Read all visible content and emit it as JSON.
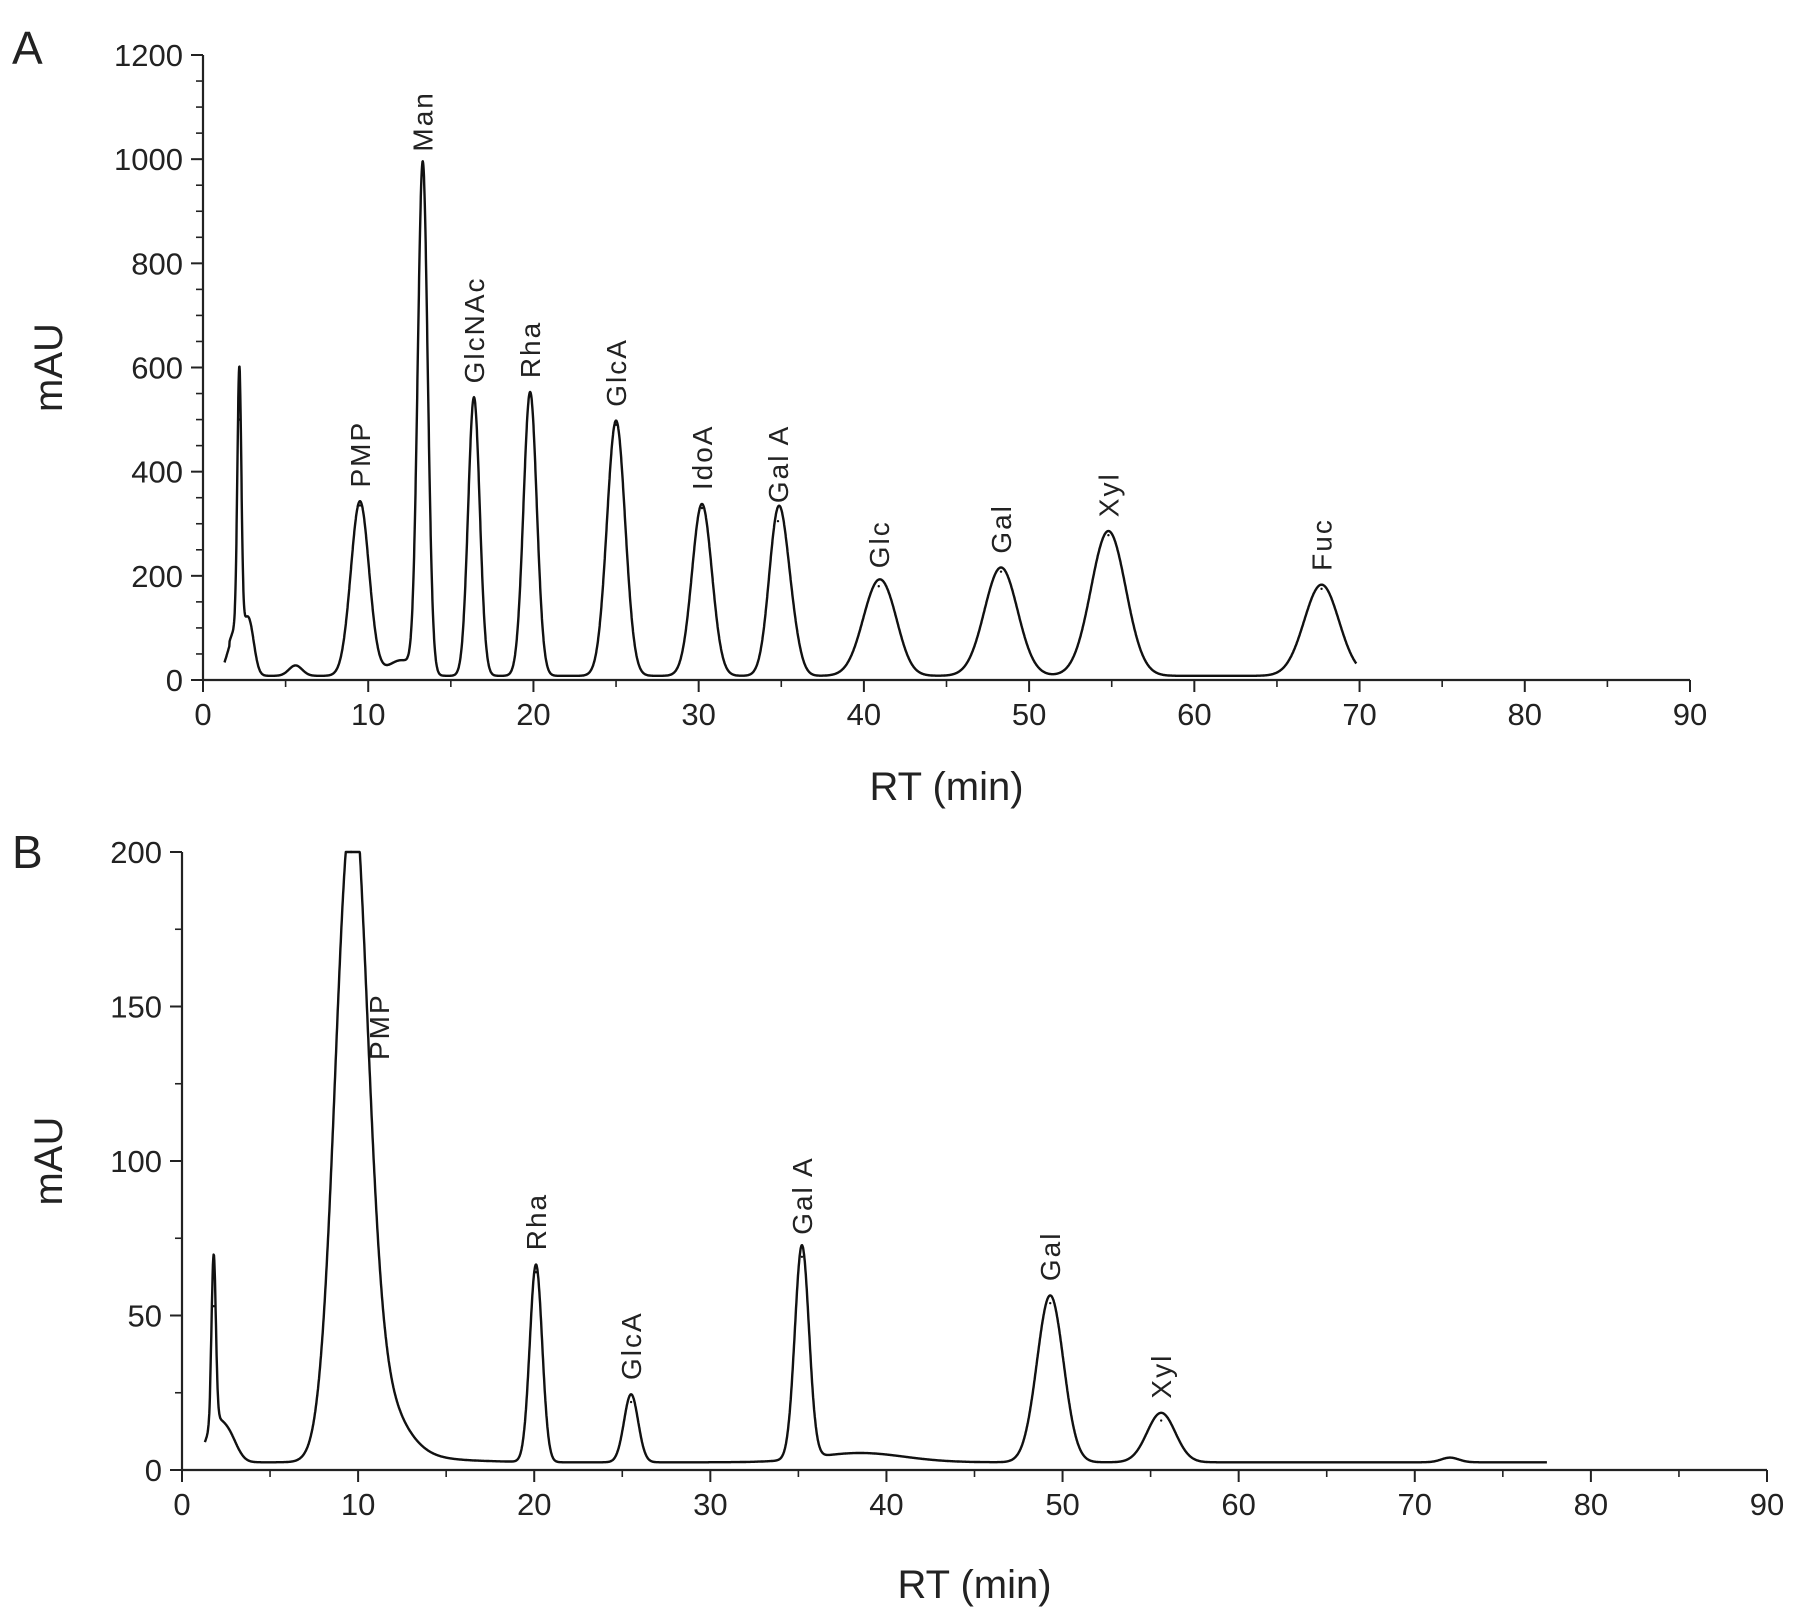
{
  "chart_data": [
    {
      "panel": "A",
      "type": "line",
      "xlabel": "RT (min)",
      "ylabel": "mAU",
      "xlim": [
        0,
        90
      ],
      "ylim": [
        0,
        1200
      ],
      "xticks": [
        "0",
        "10",
        "20",
        "30",
        "40",
        "50",
        "60",
        "70",
        "80",
        "90"
      ],
      "yticks": [
        "0",
        "200",
        "400",
        "600",
        "800",
        "1000",
        "1200"
      ],
      "color": "#111111",
      "peaks": [
        {
          "label": "",
          "rt": 2.2,
          "height": 500
        },
        {
          "label": "PMP",
          "rt": 9.5,
          "height": 335
        },
        {
          "label": "Man",
          "rt": 13.3,
          "height": 980
        },
        {
          "label": "GlcNAc",
          "rt": 16.4,
          "height": 535
        },
        {
          "label": "Rha",
          "rt": 19.8,
          "height": 545
        },
        {
          "label": "GlcA",
          "rt": 25.0,
          "height": 490
        },
        {
          "label": "IdoA",
          "rt": 30.2,
          "height": 330
        },
        {
          "label": "Gal A",
          "rt": 34.8,
          "height": 305
        },
        {
          "label": "Glc",
          "rt": 40.9,
          "height": 180
        },
        {
          "label": "Gal",
          "rt": 48.3,
          "height": 208
        },
        {
          "label": "Xyl",
          "rt": 54.8,
          "height": 278
        },
        {
          "label": "Fuc",
          "rt": 67.7,
          "height": 175
        }
      ]
    },
    {
      "panel": "B",
      "type": "line",
      "xlabel": "RT (min)",
      "ylabel": "mAU",
      "xlim": [
        0,
        90
      ],
      "ylim": [
        0,
        200
      ],
      "xticks": [
        "0",
        "10",
        "20",
        "30",
        "40",
        "50",
        "60",
        "70",
        "80",
        "90"
      ],
      "yticks": [
        "0",
        "50",
        "100",
        "150",
        "200"
      ],
      "color": "#111111",
      "peaks": [
        {
          "label": "",
          "rt": 1.8,
          "height": 53
        },
        {
          "label": "PMP",
          "rt": 9.6,
          "height": 200
        },
        {
          "label": "Rha",
          "rt": 20.1,
          "height": 64
        },
        {
          "label": "GlcA",
          "rt": 25.5,
          "height": 22
        },
        {
          "label": "Gal A",
          "rt": 35.2,
          "height": 69
        },
        {
          "label": "Gal",
          "rt": 49.3,
          "height": 54
        },
        {
          "label": "Xyl",
          "rt": 55.6,
          "height": 16
        }
      ]
    }
  ]
}
